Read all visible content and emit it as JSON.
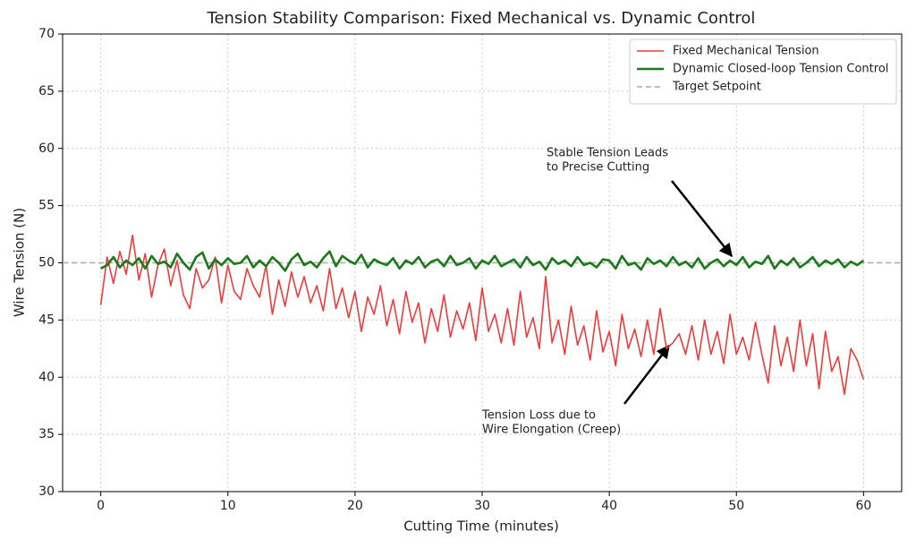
{
  "chart_data": {
    "type": "line",
    "title": "Tension Stability Comparison: Fixed Mechanical vs. Dynamic Control",
    "x_label": "Cutting Time (minutes)",
    "y_label": "Wire Tension (N)",
    "xlim": [
      -3,
      63
    ],
    "ylim": [
      30,
      70
    ],
    "xticks": [
      0,
      10,
      20,
      30,
      40,
      50,
      60
    ],
    "yticks": [
      30,
      35,
      40,
      45,
      50,
      55,
      60,
      65,
      70
    ],
    "grid": true,
    "legend": "upper right",
    "x": [
      0,
      0.5,
      1,
      1.5,
      2,
      2.5,
      3,
      3.5,
      4,
      4.5,
      5,
      5.5,
      6,
      6.5,
      7,
      7.5,
      8,
      8.5,
      9,
      9.5,
      10,
      10.5,
      11,
      11.5,
      12,
      12.5,
      13,
      13.5,
      14,
      14.5,
      15,
      15.5,
      16,
      16.5,
      17,
      17.5,
      18,
      18.5,
      19,
      19.5,
      20,
      20.5,
      21,
      21.5,
      22,
      22.5,
      23,
      23.5,
      24,
      24.5,
      25,
      25.5,
      26,
      26.5,
      27,
      27.5,
      28,
      28.5,
      29,
      29.5,
      30,
      30.5,
      31,
      31.5,
      32,
      32.5,
      33,
      33.5,
      34,
      34.5,
      35,
      35.5,
      36,
      36.5,
      37,
      37.5,
      38,
      38.5,
      39,
      39.5,
      40,
      40.5,
      41,
      41.5,
      42,
      42.5,
      43,
      43.5,
      44,
      44.5,
      45,
      45.5,
      46,
      46.5,
      47,
      47.5,
      48,
      48.5,
      49,
      49.5,
      50,
      50.5,
      51,
      51.5,
      52,
      52.5,
      53,
      53.5,
      54,
      54.5,
      55,
      55.5,
      56,
      56.5,
      57,
      57.5,
      58,
      58.5,
      59,
      59.5,
      60
    ],
    "series": [
      {
        "name": "Fixed Mechanical Tension",
        "color": "#f03a3a",
        "width": 1.6,
        "values": [
          46.3,
          50.5,
          48.2,
          51.0,
          49.0,
          52.4,
          48.5,
          50.8,
          47.0,
          49.8,
          51.2,
          48.0,
          50.2,
          47.2,
          46.0,
          49.5,
          47.8,
          48.5,
          50.5,
          46.5,
          49.8,
          47.5,
          46.8,
          49.5,
          48.0,
          47.0,
          49.8,
          45.5,
          48.5,
          46.2,
          49.2,
          47.0,
          48.8,
          46.5,
          48.0,
          45.8,
          49.5,
          46.0,
          47.8,
          45.2,
          47.5,
          44.0,
          47.0,
          45.5,
          48.0,
          44.5,
          46.8,
          43.8,
          47.5,
          44.8,
          46.5,
          43.0,
          46.0,
          44.0,
          47.2,
          43.5,
          45.8,
          44.2,
          46.5,
          43.2,
          47.8,
          44.0,
          45.5,
          43.0,
          46.0,
          42.8,
          47.5,
          43.5,
          45.2,
          42.5,
          48.8,
          43.0,
          45.0,
          42.0,
          46.2,
          42.8,
          44.5,
          41.5,
          45.8,
          42.2,
          44.0,
          41.0,
          45.5,
          42.5,
          44.2,
          41.8,
          45.0,
          42.0,
          46.0,
          42.5,
          43.0,
          43.8,
          42.0,
          44.5,
          41.5,
          45.0,
          42.0,
          44.0,
          41.2,
          45.5,
          42.0,
          43.5,
          41.5,
          44.8,
          42.0,
          39.5,
          44.5,
          41.0,
          43.5,
          40.5,
          45.0,
          41.0,
          43.8,
          39.0,
          44.0,
          40.5,
          41.8,
          38.5,
          42.5,
          41.5,
          39.8
        ]
      },
      {
        "name": "Dynamic Closed-loop Tension Control",
        "color": "#1a7a1a",
        "width": 2.6,
        "values": [
          49.5,
          49.8,
          50.5,
          49.6,
          50.2,
          49.8,
          50.4,
          49.5,
          50.6,
          49.9,
          50.1,
          49.6,
          50.8,
          50.0,
          49.4,
          50.5,
          50.9,
          49.5,
          50.3,
          49.8,
          50.4,
          49.9,
          50.0,
          50.6,
          49.6,
          50.2,
          49.7,
          50.5,
          50.0,
          49.3,
          50.3,
          50.8,
          49.8,
          50.1,
          49.6,
          50.4,
          51.0,
          49.7,
          50.6,
          50.2,
          49.9,
          50.7,
          49.6,
          50.3,
          50.0,
          49.8,
          50.4,
          49.5,
          50.2,
          49.9,
          50.5,
          49.6,
          50.1,
          50.3,
          49.7,
          50.6,
          49.8,
          50.0,
          50.4,
          49.5,
          50.2,
          49.9,
          50.6,
          49.7,
          50.0,
          50.3,
          49.6,
          50.5,
          49.8,
          50.1,
          49.4,
          50.4,
          49.9,
          50.2,
          49.7,
          50.5,
          49.8,
          50.0,
          49.6,
          50.3,
          50.2,
          49.5,
          50.6,
          49.8,
          50.0,
          49.4,
          50.4,
          49.9,
          50.2,
          49.7,
          50.5,
          49.8,
          50.1,
          49.6,
          50.4,
          49.5,
          50.0,
          50.3,
          49.7,
          50.2,
          49.8,
          50.5,
          49.6,
          50.1,
          49.9,
          50.6,
          49.5,
          50.2,
          49.8,
          50.4,
          49.6,
          50.0,
          50.5,
          49.7,
          50.2,
          49.9,
          50.3,
          49.6,
          50.1,
          49.8,
          50.2
        ]
      }
    ],
    "reference_line": {
      "name": "Target Setpoint",
      "value": 50,
      "color": "#aaaaaa"
    },
    "annotations": [
      {
        "lines": [
          "Stable Tension Leads",
          "to Precise Cutting"
        ],
        "color": "#1a6a1a"
      },
      {
        "lines": [
          "Tension Loss due to",
          "Wire Elongation (Creep)"
        ],
        "color": "#111111"
      }
    ]
  }
}
